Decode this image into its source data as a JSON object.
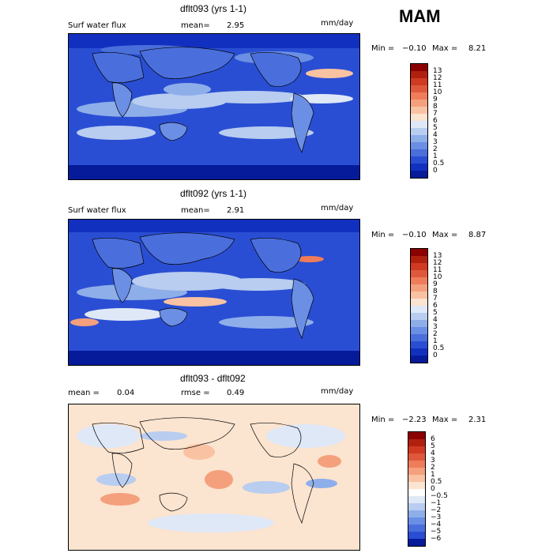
{
  "season": "MAM",
  "panels": [
    {
      "id": "top",
      "title": "dflt093 (yrs 1-1)",
      "field": "Surf water flux",
      "mean_label": "mean=",
      "mean_value": "2.95",
      "units": "mm/day",
      "min_label": "Min =",
      "min_value": "−0.10",
      "max_label": "Max =",
      "max_value": "8.21",
      "levels": [
        "13",
        "12",
        "11",
        "10",
        "9",
        "8",
        "7",
        "6",
        "5",
        "4",
        "3",
        "2",
        "1",
        "0.5",
        "0"
      ],
      "colors": [
        "#8b0000",
        "#b0200f",
        "#d03a20",
        "#e0583c",
        "#ef7c5a",
        "#f5a07c",
        "#f9c2a2",
        "#fbe4d0",
        "#dfe8f7",
        "#b8cdf0",
        "#8eaeea",
        "#6a8fe4",
        "#4a6fdc",
        "#2a4ed3",
        "#1230c0",
        "#061b9a"
      ]
    },
    {
      "id": "middle",
      "title": "dflt092 (yrs 1-1)",
      "field": "Surf water flux",
      "mean_label": "mean=",
      "mean_value": "2.91",
      "units": "mm/day",
      "min_label": "Min =",
      "min_value": "−0.10",
      "max_label": "Max =",
      "max_value": "8.87",
      "levels": [
        "13",
        "12",
        "11",
        "10",
        "9",
        "8",
        "7",
        "6",
        "5",
        "4",
        "3",
        "2",
        "1",
        "0.5",
        "0"
      ],
      "colors": [
        "#8b0000",
        "#b0200f",
        "#d03a20",
        "#e0583c",
        "#ef7c5a",
        "#f5a07c",
        "#f9c2a2",
        "#fbe4d0",
        "#dfe8f7",
        "#b8cdf0",
        "#8eaeea",
        "#6a8fe4",
        "#4a6fdc",
        "#2a4ed3",
        "#1230c0",
        "#061b9a"
      ]
    },
    {
      "id": "bottom",
      "title": "dflt093 - dflt092",
      "mean_label": "mean =",
      "mean_value": "0.04",
      "rmse_label": "rmse =",
      "rmse_value": "0.49",
      "units": "mm/day",
      "min_label": "Min =",
      "min_value": "−2.23",
      "max_label": "Max =",
      "max_value": "2.31",
      "levels": [
        "6",
        "5",
        "4",
        "3",
        "2",
        "1",
        "0.5",
        "0",
        "−0.5",
        "−1",
        "−2",
        "−3",
        "−4",
        "−5",
        "−6"
      ],
      "colors": [
        "#8b0000",
        "#b0200f",
        "#d03a20",
        "#e0583c",
        "#ef7c5a",
        "#f5a07c",
        "#f9c2a2",
        "#fbe4d0",
        "#ffffff",
        "#dfe8f7",
        "#b8cdf0",
        "#8eaeea",
        "#6a8fe4",
        "#4a6fdc",
        "#2a4ed3",
        "#061b9a"
      ]
    }
  ]
}
